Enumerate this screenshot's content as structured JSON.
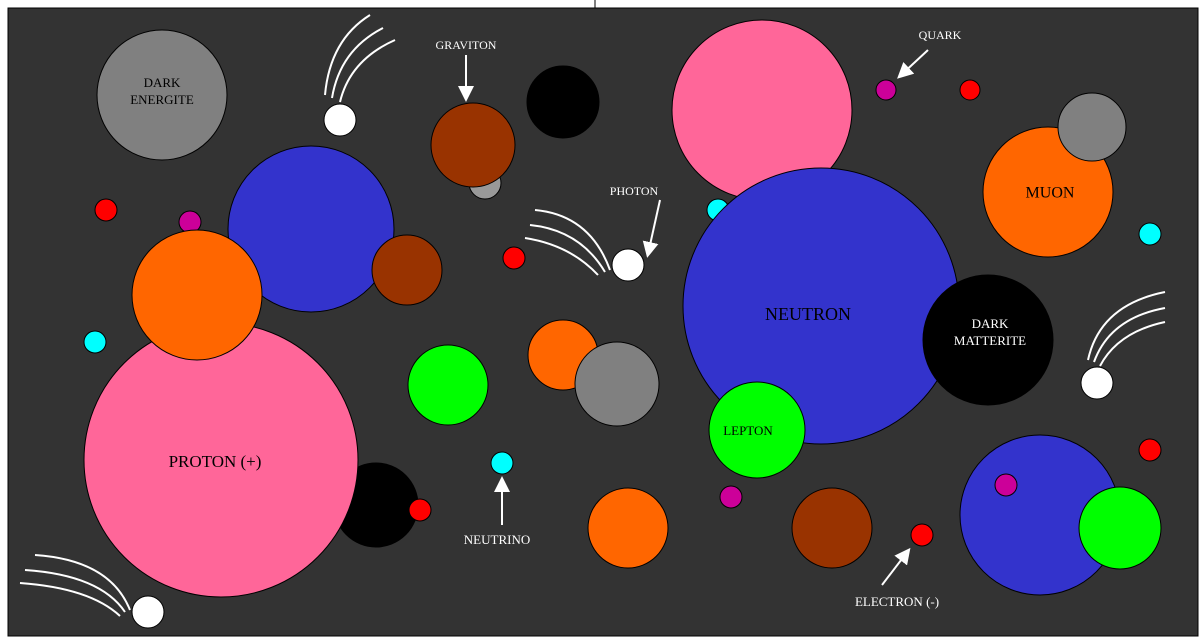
{
  "labels": {
    "dark_energite": [
      "DARK",
      "ENERGITE"
    ],
    "graviton": "GRAVITON",
    "quark": "QUARK",
    "muon": "MUON",
    "photon": "PHOTON",
    "neutron": "NEUTRON",
    "dark_matterite": [
      "DARK",
      "MATTERITE"
    ],
    "proton": "PROTON (+)",
    "lepton": "LEPTON",
    "neutrino": "NEUTRINO",
    "electron": "ELECTRON (-)"
  }
}
